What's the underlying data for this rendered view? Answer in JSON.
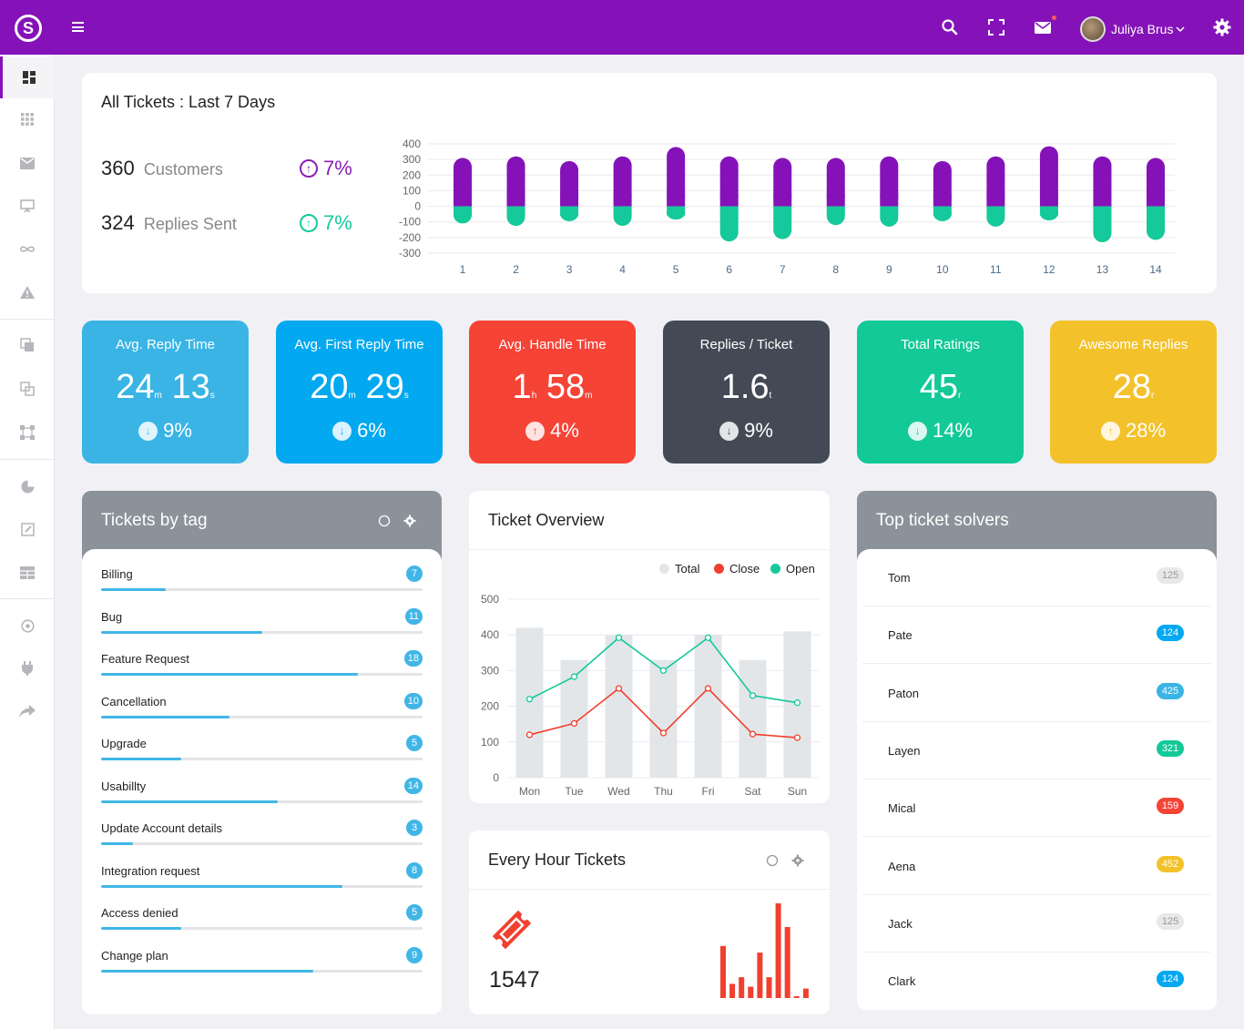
{
  "topbar": {
    "logo": "S",
    "user_name": "Juliya Brus"
  },
  "sidebar": {
    "items": [
      "dashboard-icon",
      "apps-icon",
      "mail-icon",
      "presentation-icon",
      "infinity-icon",
      "warning-icon",
      "copy-icon",
      "layers-icon",
      "bounding-box-icon",
      "pie-chart-icon",
      "edit-icon",
      "table-icon",
      "location-icon",
      "plug-icon",
      "share-icon"
    ]
  },
  "summary": {
    "title": "All Tickets : Last 7 Days",
    "customers_value": "360",
    "customers_label": "Customers",
    "customers_pct": "7%",
    "replies_value": "324",
    "replies_label": "Replies Sent",
    "replies_pct": "7%"
  },
  "chart_data": [
    {
      "type": "bar",
      "chart": "all-tickets",
      "categories": [
        "1",
        "2",
        "3",
        "4",
        "5",
        "6",
        "7",
        "8",
        "9",
        "10",
        "11",
        "12",
        "13",
        "14"
      ],
      "yticks": [
        "400",
        "300",
        "200",
        "100",
        "0",
        "-100",
        "-200",
        "-300"
      ],
      "ylim": [
        -300,
        400
      ],
      "series": [
        {
          "values": [
            310,
            320,
            290,
            320,
            380,
            320,
            310,
            310,
            320,
            290,
            320,
            385,
            320,
            310
          ],
          "color": "#8512b8"
        },
        {
          "values": [
            -110,
            -125,
            -95,
            -125,
            -85,
            -225,
            -210,
            -120,
            -130,
            -95,
            -130,
            -90,
            -230,
            -215
          ],
          "color": "#14c99a"
        }
      ]
    },
    {
      "type": "bar+line",
      "chart": "ticket-overview",
      "categories": [
        "Mon",
        "Tue",
        "Wed",
        "Thu",
        "Fri",
        "Sat",
        "Sun"
      ],
      "yticks": [
        "500",
        "400",
        "300",
        "200",
        "100",
        "0"
      ],
      "ylim": [
        0,
        500
      ],
      "legend": [
        "Total",
        "Close",
        "Open"
      ],
      "series": [
        {
          "name": "Total",
          "values": [
            420,
            330,
            400,
            330,
            400,
            330,
            410
          ],
          "color": "#e3e6e9"
        },
        {
          "name": "Close",
          "values": [
            120,
            152,
            250,
            125,
            250,
            122,
            112
          ],
          "color": "#f0402f"
        },
        {
          "name": "Open",
          "values": [
            220,
            283,
            392,
            300,
            392,
            230,
            210
          ],
          "color": "#14c99a"
        }
      ]
    },
    {
      "type": "bar",
      "chart": "every-hour-tickets",
      "values": [
        55,
        15,
        22,
        12,
        48,
        22,
        100,
        75,
        2,
        10
      ],
      "color": "#f0402f"
    }
  ],
  "kpis": [
    {
      "title": "Avg. Reply Time",
      "v1": "24",
      "u1": "m",
      "v2": "13",
      "u2": "s",
      "pct": "9%",
      "dir": "down",
      "color": "#39b4e5"
    },
    {
      "title": "Avg. First Reply Time",
      "v1": "20",
      "u1": "m",
      "v2": "29",
      "u2": "s",
      "pct": "6%",
      "dir": "down",
      "color": "#02a8f0"
    },
    {
      "title": "Avg. Handle Time",
      "v1": "1",
      "u1": "h",
      "v2": "58",
      "u2": "m",
      "pct": "4%",
      "dir": "up",
      "color": "#f54336"
    },
    {
      "title": "Replies / Ticket",
      "v1": "1.6",
      "u1": "t",
      "v2": "",
      "u2": "",
      "pct": "9%",
      "dir": "down",
      "color": "#434a56"
    },
    {
      "title": "Total Ratings",
      "v1": "45",
      "u1": "r",
      "v2": "",
      "u2": "",
      "pct": "14%",
      "dir": "down",
      "color": "#13c997"
    },
    {
      "title": "Awesome Replies",
      "v1": "28",
      "u1": "r",
      "v2": "",
      "u2": "",
      "pct": "28%",
      "dir": "up",
      "color": "#f3c12a"
    }
  ],
  "tags": {
    "title": "Tickets by tag",
    "items": [
      {
        "name": "Billing",
        "count": "7",
        "fill": 0.2
      },
      {
        "name": "Bug",
        "count": "11",
        "fill": 0.5
      },
      {
        "name": "Feature Request",
        "count": "18",
        "fill": 0.8
      },
      {
        "name": "Cancellation",
        "count": "10",
        "fill": 0.4
      },
      {
        "name": "Upgrade",
        "count": "5",
        "fill": 0.25
      },
      {
        "name": "Usabillty",
        "count": "14",
        "fill": 0.55
      },
      {
        "name": "Update Account details",
        "count": "3",
        "fill": 0.1
      },
      {
        "name": "Integration request",
        "count": "8",
        "fill": 0.75
      },
      {
        "name": "Access denied",
        "count": "5",
        "fill": 0.25
      },
      {
        "name": "Change plan",
        "count": "9",
        "fill": 0.66
      }
    ]
  },
  "overview": {
    "title": "Ticket Overview"
  },
  "hourly": {
    "title": "Every Hour Tickets",
    "value": "1547"
  },
  "solvers": {
    "title": "Top ticket solvers",
    "items": [
      {
        "name": "Tom",
        "count": "125",
        "color": "#e8e8ea",
        "text": "#999"
      },
      {
        "name": "Pate",
        "count": "124",
        "color": "#02a8f0",
        "text": "#fff"
      },
      {
        "name": "Paton",
        "count": "425",
        "color": "#39b4e5",
        "text": "#fff"
      },
      {
        "name": "Layen",
        "count": "321",
        "color": "#13c997",
        "text": "#fff"
      },
      {
        "name": "Mical",
        "count": "159",
        "color": "#f54336",
        "text": "#fff"
      },
      {
        "name": "Aena",
        "count": "452",
        "color": "#f3c12a",
        "text": "#fff"
      },
      {
        "name": "Jack",
        "count": "125",
        "color": "#e8e8ea",
        "text": "#999"
      },
      {
        "name": "Clark",
        "count": "124",
        "color": "#02a8f0",
        "text": "#fff"
      }
    ]
  }
}
